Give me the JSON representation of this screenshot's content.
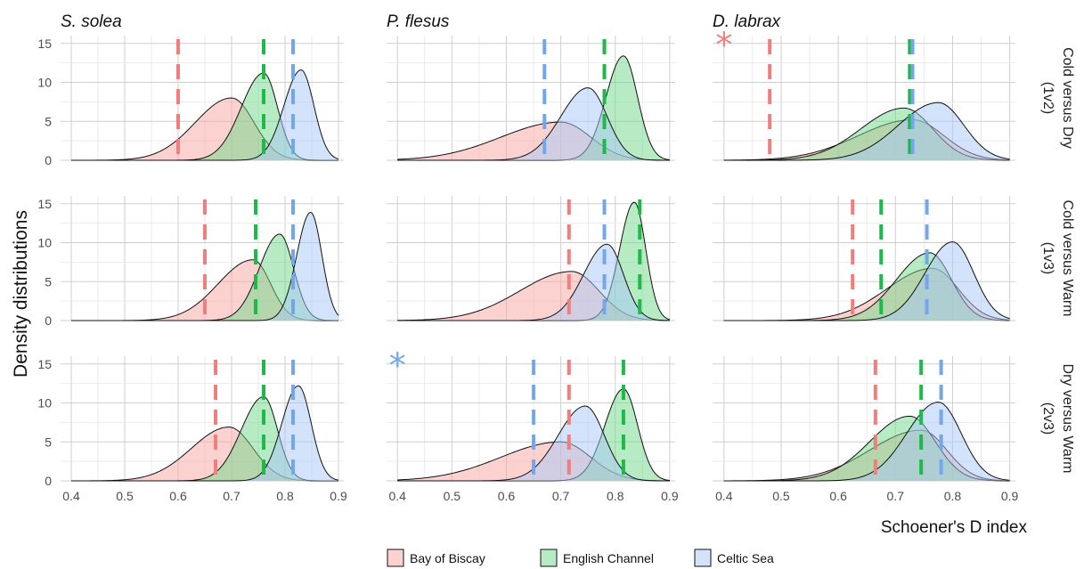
{
  "chart_data": {
    "type": "area",
    "ylabel": "Density distributions",
    "xlabel": "Schoener's D index",
    "xlim": [
      0.38,
      0.91
    ],
    "ylim": [
      0,
      16
    ],
    "x_ticks": [
      0.4,
      0.5,
      0.6,
      0.7,
      0.8,
      0.9
    ],
    "x_tick_labels": [
      "0.4",
      "0.5",
      "0.6",
      "0.7",
      "0.8",
      "0.9"
    ],
    "y_ticks": [
      0,
      5,
      10,
      15
    ],
    "y_tick_labels": [
      "0",
      "5",
      "10",
      "15"
    ],
    "grid": true,
    "legend_position": "bottom",
    "series": [
      {
        "name": "Bay of Biscay",
        "fill": "#f8a6a0",
        "line": "#ef7f7f"
      },
      {
        "name": "English Channel",
        "fill": "#6fd88a",
        "line": "#1fb84a"
      },
      {
        "name": "Celtic Sea",
        "fill": "#a8c8f8",
        "line": "#74a6ec"
      }
    ],
    "columns": [
      "S. solea",
      "P. flesus",
      "D. labrax"
    ],
    "rows": [
      {
        "strip": [
          "(1v2)",
          "Cold versus Dry"
        ]
      },
      {
        "strip": [
          "(1v3)",
          "Cold versus Warm"
        ]
      },
      {
        "strip": [
          "(2v3)",
          "Dry versus Warm"
        ]
      }
    ],
    "panels": [
      {
        "row": 0,
        "col": 0,
        "star": null,
        "curves": [
          {
            "series": 0,
            "mode": 0.7,
            "peak": 8.0,
            "sd_left": 0.068,
            "sd_right": 0.042
          },
          {
            "series": 1,
            "mode": 0.76,
            "peak": 11.2,
            "sd_left": 0.042,
            "sd_right": 0.026
          },
          {
            "series": 2,
            "mode": 0.83,
            "peak": 11.6,
            "sd_left": 0.032,
            "sd_right": 0.024
          }
        ],
        "observed": [
          0.6,
          0.76,
          0.815
        ]
      },
      {
        "row": 0,
        "col": 1,
        "star": null,
        "curves": [
          {
            "series": 0,
            "mode": 0.7,
            "peak": 4.9,
            "sd_left": 0.11,
            "sd_right": 0.055
          },
          {
            "series": 1,
            "mode": 0.815,
            "peak": 13.4,
            "sd_left": 0.032,
            "sd_right": 0.026
          },
          {
            "series": 2,
            "mode": 0.75,
            "peak": 9.3,
            "sd_left": 0.05,
            "sd_right": 0.035
          }
        ],
        "observed": [
          0.78,
          0.78,
          0.67
        ]
      },
      {
        "row": 0,
        "col": 2,
        "star": {
          "series": 0,
          "x": 0.4,
          "y": 14.8
        },
        "curves": [
          {
            "series": 0,
            "mode": 0.73,
            "peak": 5.2,
            "sd_left": 0.095,
            "sd_right": 0.055
          },
          {
            "series": 1,
            "mode": 0.715,
            "peak": 6.7,
            "sd_left": 0.075,
            "sd_right": 0.05
          },
          {
            "series": 2,
            "mode": 0.775,
            "peak": 7.4,
            "sd_left": 0.07,
            "sd_right": 0.045
          }
        ],
        "observed": [
          0.48,
          0.725,
          0.73
        ]
      },
      {
        "row": 1,
        "col": 0,
        "star": null,
        "curves": [
          {
            "series": 0,
            "mode": 0.74,
            "peak": 7.8,
            "sd_left": 0.065,
            "sd_right": 0.033
          },
          {
            "series": 1,
            "mode": 0.79,
            "peak": 11.1,
            "sd_left": 0.038,
            "sd_right": 0.026
          },
          {
            "series": 2,
            "mode": 0.848,
            "peak": 13.9,
            "sd_left": 0.026,
            "sd_right": 0.021
          }
        ],
        "observed": [
          0.65,
          0.745,
          0.815
        ]
      },
      {
        "row": 1,
        "col": 1,
        "star": null,
        "curves": [
          {
            "series": 0,
            "mode": 0.72,
            "peak": 6.3,
            "sd_left": 0.095,
            "sd_right": 0.05
          },
          {
            "series": 1,
            "mode": 0.835,
            "peak": 15.2,
            "sd_left": 0.027,
            "sd_right": 0.021
          },
          {
            "series": 2,
            "mode": 0.785,
            "peak": 9.8,
            "sd_left": 0.043,
            "sd_right": 0.03
          }
        ],
        "observed": [
          0.715,
          0.845,
          0.78
        ]
      },
      {
        "row": 1,
        "col": 2,
        "star": null,
        "curves": [
          {
            "series": 0,
            "mode": 0.765,
            "peak": 6.7,
            "sd_left": 0.08,
            "sd_right": 0.045
          },
          {
            "series": 1,
            "mode": 0.76,
            "peak": 8.7,
            "sd_left": 0.058,
            "sd_right": 0.038
          },
          {
            "series": 2,
            "mode": 0.8,
            "peak": 10.1,
            "sd_left": 0.048,
            "sd_right": 0.037
          }
        ],
        "observed": [
          0.625,
          0.675,
          0.755
        ]
      },
      {
        "row": 2,
        "col": 0,
        "star": null,
        "curves": [
          {
            "series": 0,
            "mode": 0.695,
            "peak": 6.9,
            "sd_left": 0.07,
            "sd_right": 0.045
          },
          {
            "series": 1,
            "mode": 0.76,
            "peak": 10.8,
            "sd_left": 0.042,
            "sd_right": 0.026
          },
          {
            "series": 2,
            "mode": 0.825,
            "peak": 12.2,
            "sd_left": 0.031,
            "sd_right": 0.024
          }
        ],
        "observed": [
          0.67,
          0.76,
          0.815
        ]
      },
      {
        "row": 2,
        "col": 1,
        "star": {
          "series": 2,
          "x": 0.4,
          "y": 14.8
        },
        "curves": [
          {
            "series": 0,
            "mode": 0.7,
            "peak": 5.0,
            "sd_left": 0.11,
            "sd_right": 0.055
          },
          {
            "series": 1,
            "mode": 0.815,
            "peak": 11.8,
            "sd_left": 0.034,
            "sd_right": 0.026
          },
          {
            "series": 2,
            "mode": 0.745,
            "peak": 9.6,
            "sd_left": 0.05,
            "sd_right": 0.035
          }
        ],
        "observed": [
          0.715,
          0.815,
          0.65
        ]
      },
      {
        "row": 2,
        "col": 2,
        "star": null,
        "curves": [
          {
            "series": 0,
            "mode": 0.745,
            "peak": 6.5,
            "sd_left": 0.09,
            "sd_right": 0.045
          },
          {
            "series": 1,
            "mode": 0.725,
            "peak": 8.3,
            "sd_left": 0.07,
            "sd_right": 0.045
          },
          {
            "series": 2,
            "mode": 0.775,
            "peak": 10.1,
            "sd_left": 0.055,
            "sd_right": 0.04
          }
        ],
        "observed": [
          0.665,
          0.745,
          0.78
        ]
      }
    ]
  }
}
